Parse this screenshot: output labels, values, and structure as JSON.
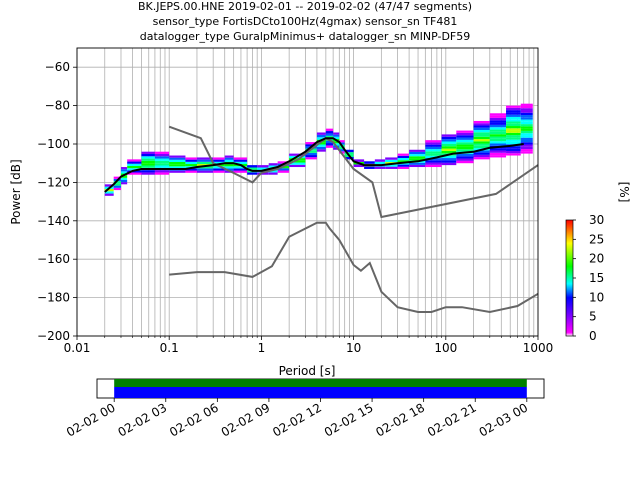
{
  "title_lines": [
    "BK.JEPS.00.HNE   2019-02-01 -- 2019-02-02  (47/47 segments)",
    "sensor_type FortisDCto100Hz(4gmax) sensor_sn TF481",
    "datalogger_type GuralpMinimus+ datalogger_sn MINP-DF59"
  ],
  "colors": {
    "mean_line": "#000000",
    "noise_model": "#666666",
    "timeline_green": "#008000",
    "timeline_blue": "#0000ff"
  },
  "chart_data": [
    {
      "type": "heatmap",
      "xlabel": "Period [s]",
      "ylabel": "Power [dB]",
      "x_scale": "log",
      "xlim": [
        0.01,
        1000
      ],
      "ylim": [
        -200,
        -50
      ],
      "x_ticks": [
        0.01,
        0.1,
        1,
        10,
        100,
        1000
      ],
      "x_tick_labels": [
        "0.01",
        "0.1",
        "1",
        "10",
        "100",
        "1000"
      ],
      "y_ticks": [
        -200,
        -180,
        -160,
        -140,
        -120,
        -100,
        -80,
        -60
      ],
      "y_tick_labels": [
        "−200",
        "−180",
        "−160",
        "−140",
        "−120",
        "−100",
        "−80",
        "−60"
      ],
      "grid": true,
      "colorbar": {
        "label": "[%]",
        "range": [
          0,
          30
        ],
        "ticks": [
          0,
          5,
          10,
          15,
          20,
          25,
          30
        ],
        "colormap": "pqlx"
      },
      "mean_psd": {
        "x": [
          0.02,
          0.025,
          0.03,
          0.04,
          0.05,
          0.07,
          0.1,
          0.15,
          0.2,
          0.3,
          0.4,
          0.5,
          0.6,
          0.7,
          0.8,
          1,
          1.5,
          2,
          3,
          4,
          5,
          6,
          7,
          8,
          10,
          13,
          16,
          20,
          30,
          50,
          80,
          120,
          200,
          300,
          500,
          700
        ],
        "y": [
          -125,
          -121,
          -117,
          -114,
          -113,
          -113,
          -113,
          -113,
          -112,
          -111,
          -110,
          -110,
          -111,
          -113,
          -114,
          -114,
          -112,
          -109,
          -104,
          -99,
          -97,
          -97,
          -99,
          -103,
          -109,
          -111,
          -111,
          -111,
          -110,
          -109,
          -107,
          -105,
          -104,
          -102,
          -101,
          -100
        ]
      },
      "noise_models": [
        {
          "x": [
            0.1,
            0.22,
            0.3,
            0.45,
            0.8,
            1.0,
            1.5,
            2.5,
            5.0,
            6.0,
            10.0,
            16.0,
            20.0,
            350.0,
            1000.0
          ],
          "y": [
            -91,
            -97,
            -110,
            -114,
            -120,
            -115,
            -113,
            -108,
            -97,
            -99,
            -113,
            -120,
            -138,
            -126,
            -111
          ]
        },
        {
          "x": [
            0.1,
            0.2,
            0.4,
            0.8,
            1.3,
            2.0,
            4.0,
            5.0,
            5.5,
            7.0,
            10.0,
            12.0,
            15.0,
            20.0,
            30.0,
            50.0,
            70.0,
            100.0,
            150.0,
            300.0,
            600.0,
            1000.0
          ],
          "y": [
            -168,
            -166.7,
            -166.7,
            -169.2,
            -163.7,
            -148.3,
            -141,
            -141,
            -144,
            -150,
            -163,
            -166,
            -162,
            -177,
            -185,
            -187.5,
            -187.5,
            -185,
            -185,
            -187.5,
            -184.4,
            -178
          ]
        }
      ],
      "density_cells": [
        [
          0.02,
          -127,
          -121
        ],
        [
          0.025,
          -124,
          -117
        ],
        [
          0.03,
          -121,
          -112
        ],
        [
          0.035,
          -116,
          -108
        ],
        [
          0.05,
          -116,
          -104
        ],
        [
          0.07,
          -116,
          -104
        ],
        [
          0.1,
          -115,
          -106
        ],
        [
          0.15,
          -115,
          -107
        ],
        [
          0.2,
          -115,
          -107
        ],
        [
          0.3,
          -115,
          -107
        ],
        [
          0.4,
          -115,
          -106
        ],
        [
          0.5,
          -115,
          -107
        ],
        [
          0.7,
          -116,
          -111
        ],
        [
          0.9,
          -116,
          -111
        ],
        [
          1.2,
          -116,
          -110
        ],
        [
          1.5,
          -115,
          -109
        ],
        [
          2,
          -112,
          -105
        ],
        [
          3,
          -108,
          -99
        ],
        [
          4,
          -104,
          -94
        ],
        [
          5,
          -102,
          -92
        ],
        [
          6,
          -103,
          -94
        ],
        [
          7,
          -105,
          -98
        ],
        [
          8,
          -108,
          -103
        ],
        [
          10,
          -112,
          -108
        ],
        [
          13,
          -113,
          -109
        ],
        [
          17,
          -113,
          -108
        ],
        [
          22,
          -113,
          -107
        ],
        [
          30,
          -113,
          -105
        ],
        [
          40,
          -112,
          -103
        ],
        [
          60,
          -112,
          -98
        ],
        [
          90,
          -111,
          -95
        ],
        [
          130,
          -110,
          -93
        ],
        [
          200,
          -108,
          -88
        ],
        [
          300,
          -107,
          -84
        ],
        [
          450,
          -106,
          -80
        ],
        [
          650,
          -105,
          -79
        ]
      ]
    },
    {
      "type": "timeline",
      "x_tick_labels": [
        "02-02 00",
        "02-02 03",
        "02-02 06",
        "02-02 09",
        "02-02 12",
        "02-02 15",
        "02-02 18",
        "02-02 21",
        "02-03 00"
      ],
      "segments_bar": [
        0,
        24
      ],
      "span_hours": [
        -1,
        25
      ]
    }
  ]
}
